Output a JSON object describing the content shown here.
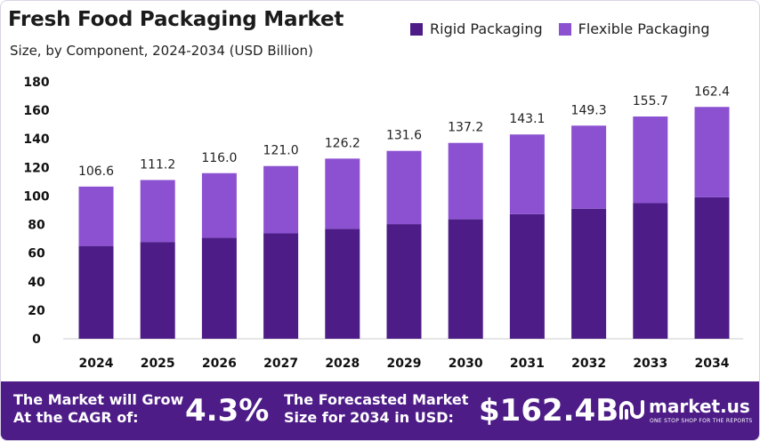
{
  "colors": {
    "rigid": "#4d1c87",
    "flexible": "#8c51d1",
    "footer_bg": "#4d1c87"
  },
  "chart_data": {
    "type": "bar",
    "stacked": true,
    "title": "Fresh Food Packaging Market",
    "subtitle": "Size, by Component, 2024-2034 (USD Billion)",
    "categories": [
      "2024",
      "2025",
      "2026",
      "2027",
      "2028",
      "2029",
      "2030",
      "2031",
      "2032",
      "2033",
      "2034"
    ],
    "series": [
      {
        "name": "Rigid Packaging",
        "color": "#4d1c87",
        "values": [
          65.0,
          67.8,
          70.8,
          73.8,
          77.0,
          80.3,
          83.7,
          87.3,
          91.1,
          95.0,
          99.1
        ]
      },
      {
        "name": "Flexible Packaging",
        "color": "#8c51d1",
        "values": [
          41.6,
          43.4,
          45.2,
          47.2,
          49.2,
          51.3,
          53.5,
          55.8,
          58.2,
          60.7,
          63.3
        ]
      }
    ],
    "totals": [
      "106.6",
      "111.2",
      "116.0",
      "121.0",
      "126.2",
      "131.6",
      "137.2",
      "143.1",
      "149.3",
      "155.7",
      "162.4"
    ],
    "ylim": [
      0,
      180
    ],
    "yticks": [
      0,
      20,
      40,
      60,
      80,
      100,
      120,
      140,
      160,
      180
    ],
    "grid": false,
    "legend_position": "top-right"
  },
  "footer": {
    "text1": "The Market will Grow\nAt the CAGR of:",
    "cagr": "4.3%",
    "text2": "The Forecasted Market\nSize for 2034 in USD:",
    "value": "$162.4B",
    "logo_name": "market.us",
    "logo_tagline": "ONE STOP SHOP FOR THE REPORTS"
  }
}
